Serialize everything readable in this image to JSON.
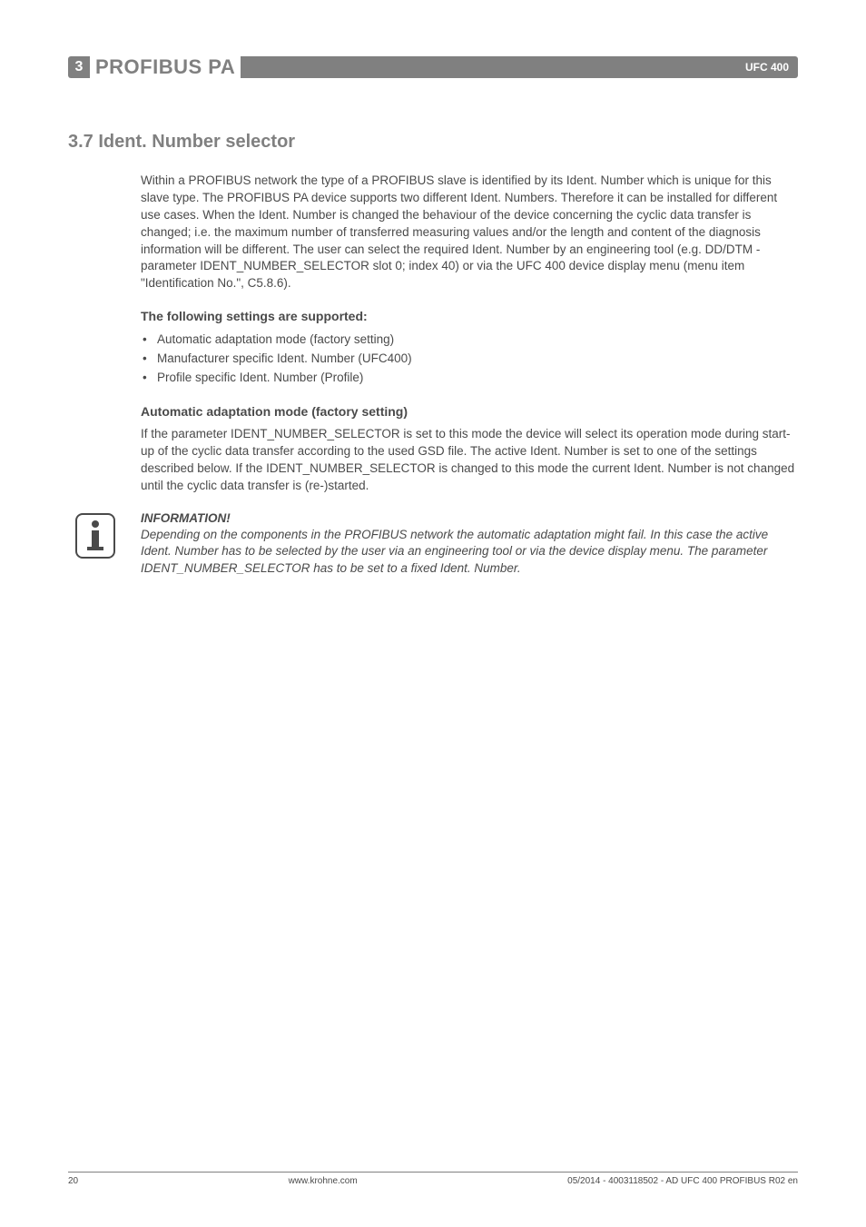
{
  "header": {
    "chapter_num": "3",
    "chapter_title": "PROFIBUS PA",
    "doc_label": "UFC 400"
  },
  "section": {
    "heading": "3.7  Ident. Number selector",
    "intro": "Within a PROFIBUS network the type of a PROFIBUS slave is identified by its Ident. Number which is unique for this slave type. The PROFIBUS PA device supports two different Ident. Numbers. Therefore it can be installed for different use cases. When the Ident. Number is changed the behaviour of the device concerning the cyclic data transfer is changed; i.e. the maximum number of transferred measuring values and/or the length and content of the diagnosis information will be different. The user can select the required Ident. Number by an engineering tool (e.g. DD/DTM - parameter IDENT_NUMBER_SELECTOR slot 0; index 40) or via the UFC 400 device display menu (menu item \"Identification No.\", C5.8.6).",
    "settings_heading": "The following settings are supported:",
    "bullets": [
      "Automatic adaptation mode (factory setting)",
      "Manufacturer specific Ident. Number (UFC400)",
      "Profile specific Ident. Number (Profile)"
    ],
    "auto_heading": "Automatic adaptation mode (factory setting)",
    "auto_body": "If the parameter IDENT_NUMBER_SELECTOR is set to this mode the device will select its operation mode during start-up of the cyclic data transfer according to the used GSD file. The active Ident. Number is set to one of the settings described below. If the IDENT_NUMBER_SELECTOR is changed to this mode the current Ident. Number is not changed until the cyclic data transfer is (re-)started."
  },
  "info": {
    "title": "INFORMATION!",
    "body": "Depending on the components in the PROFIBUS network the automatic adaptation might fail. In this case the active Ident. Number has to be selected by the user via an engineering tool or via the device display menu. The parameter IDENT_NUMBER_SELECTOR has to be set to a fixed Ident. Number."
  },
  "footer": {
    "page": "20",
    "url": "www.krohne.com",
    "docinfo": "05/2014 - 4003118502 - AD UFC 400 PROFIBUS R02 en"
  },
  "colors": {
    "header_gray": "#808080",
    "text_gray": "#4a4a4a",
    "bg": "#ffffff"
  }
}
